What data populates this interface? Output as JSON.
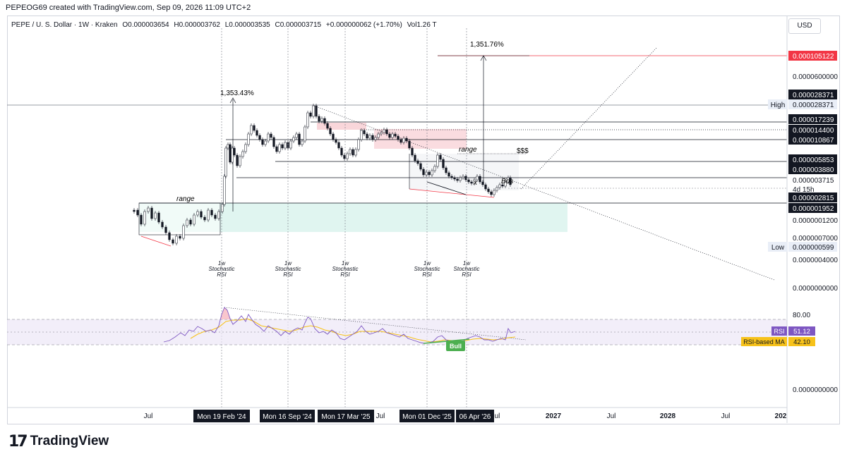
{
  "header": {
    "credit": "PEPEOG69 created with TradingView.com, Sep 09, 2026 11:09 UTC+2"
  },
  "legend": {
    "symbol": "PEPE / U. S. Dollar · 1W · Kraken",
    "open": "O0.000003654",
    "high": "H0.000003762",
    "low": "L0.000003535",
    "close": "C0.000003715",
    "change": "+0.000000062 (+1.70%)",
    "volume": "Vol1.26 T"
  },
  "currency_button": "USD",
  "price_scale": {
    "ticks": [
      "0.0000600000",
      "0.0000007000",
      "0.0000004000",
      "0.0000000000",
      "0.0000001200",
      "0.0000000000"
    ],
    "tags": [
      {
        "text": "0.000105122",
        "style": "red"
      },
      {
        "text": "0.000028371",
        "style": "dark"
      },
      {
        "text": "0.000028371",
        "style": "light",
        "prefix": "High"
      },
      {
        "text": "0.000017239",
        "style": "dark"
      },
      {
        "text": "0.000014400",
        "style": "dark"
      },
      {
        "text": "0.000010867",
        "style": "dark"
      },
      {
        "text": "0.000005853",
        "style": "dark"
      },
      {
        "text": "0.000003880",
        "style": "dark"
      },
      {
        "text": "0.000003715",
        "style": "plain"
      },
      {
        "text": "4d 15h",
        "style": "plain"
      },
      {
        "text": "0.000002815",
        "style": "dark"
      },
      {
        "text": "0.000001952",
        "style": "dark"
      },
      {
        "text": "0.000000599",
        "style": "light",
        "prefix": "Low"
      }
    ]
  },
  "rsi": {
    "level_label": "80.00",
    "rsi_label": "RSI",
    "rsi_value": "51.12",
    "ma_label": "RSI-based MA",
    "ma_value": "42.10",
    "bull_label": "Bull"
  },
  "annotations": {
    "range1": "range",
    "range2": "range",
    "dollars": "$$$",
    "pct1": "1,353.43%",
    "pct2": "1,351.76%",
    "bos": "Bos",
    "x": "x",
    "stoch_lines": [
      "1w",
      "Stochastic",
      "RSI"
    ]
  },
  "time_axis": {
    "labels": [
      "Jul",
      "Jul",
      "Jul",
      "2027",
      "Jul",
      "2028",
      "Jul",
      "202"
    ],
    "highlighted": [
      "Mon 19 Feb '24",
      "Mon 16 Sep '24",
      "Mon 17 Mar '25",
      "Mon 01 Dec '25",
      "06 Apr '26"
    ]
  },
  "branding": {
    "logo_text": "TradingView",
    "logo_mark": "17"
  },
  "colors": {
    "up": "#131722",
    "red_tag": "#f23645",
    "rsi_line": "#7e57c2",
    "rsi_ma": "#f7c21a",
    "bull": "#4caf50",
    "supply_zone": "#f7c5cb",
    "demand_zone": "#d8f2ec"
  }
}
